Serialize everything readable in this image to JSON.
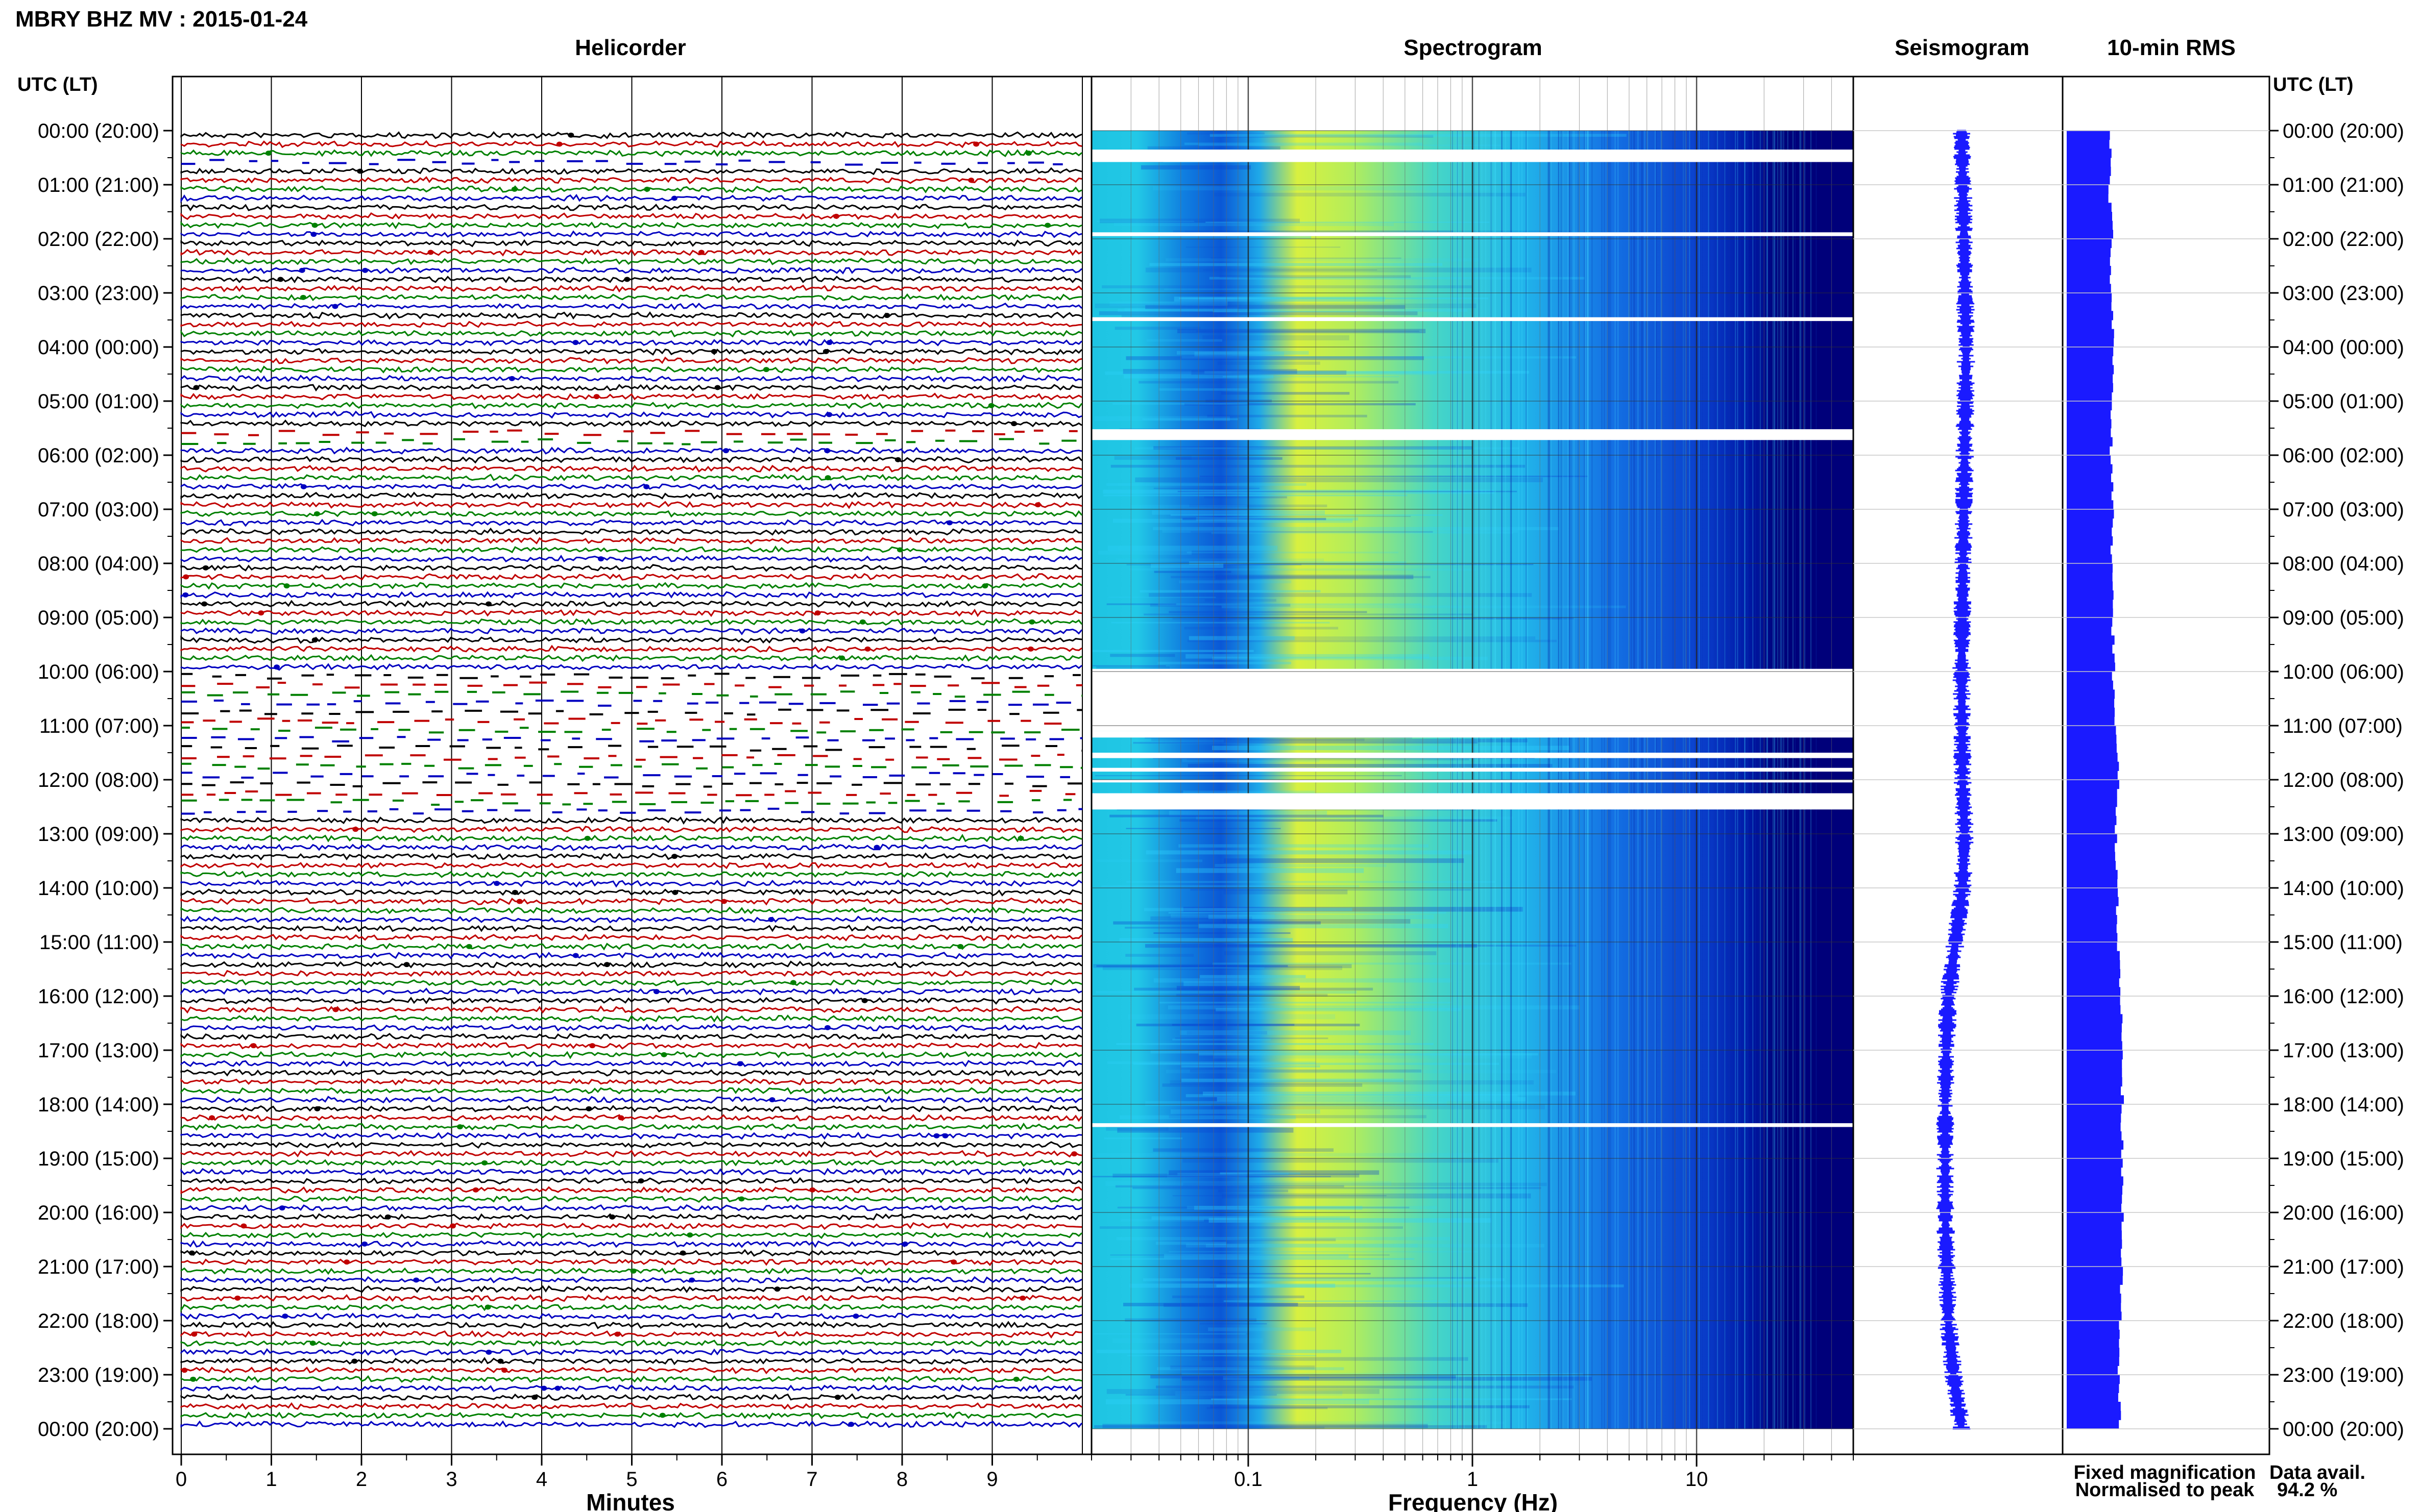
{
  "title": "MBRY BHZ MV : 2015-01-24",
  "panels": {
    "helicorder": "Helicorder",
    "spectrogram": "Spectrogram",
    "seismogram": "Seismogram",
    "rms": "10-min RMS"
  },
  "utc_lt_label": "UTC (LT)",
  "time_labels": [
    "00:00 (20:00)",
    "01:00 (21:00)",
    "02:00 (22:00)",
    "03:00 (23:00)",
    "04:00 (00:00)",
    "05:00 (01:00)",
    "06:00 (02:00)",
    "07:00 (03:00)",
    "08:00 (04:00)",
    "09:00 (05:00)",
    "10:00 (06:00)",
    "11:00 (07:00)",
    "12:00 (08:00)",
    "13:00 (09:00)",
    "14:00 (10:00)",
    "15:00 (11:00)",
    "16:00 (12:00)",
    "17:00 (13:00)",
    "18:00 (14:00)",
    "19:00 (15:00)",
    "20:00 (16:00)",
    "21:00 (17:00)",
    "22:00 (18:00)",
    "23:00 (19:00)",
    "00:00 (20:00)"
  ],
  "legend": {
    "fixed": "Fixed magnification",
    "fixed_color": "#1a1aff",
    "normalised": "Normalised to peak",
    "normalised_color": "#e00000"
  },
  "data_avail": {
    "label": "Data avail.",
    "value": "94.2 %"
  },
  "colors": {
    "trace_cycle": [
      "#000000",
      "#c00000",
      "#008000",
      "#0000c0"
    ],
    "spec_dark": "#00007a",
    "spec_mid": "#0050e0",
    "spec_cyan": "#22c8e6",
    "spec_yellow": "#d8f040",
    "seis_blue": "#1a1aff",
    "rms_blue": "#1a1aff"
  },
  "chart_data": {
    "type": "heatmap",
    "helicorder": {
      "xlabel": "Minutes",
      "xticks": [
        "0",
        "1",
        "2",
        "3",
        "4",
        "5",
        "6",
        "7",
        "8",
        "9"
      ],
      "xlim": [
        0,
        10
      ],
      "ylim_hours": [
        0,
        24
      ],
      "trace_interval_minutes": 10
    },
    "spectrogram": {
      "xlabel": "Frequency (Hz)",
      "xscale": "log",
      "xlim": [
        0.02,
        50
      ],
      "xticks": [
        "0.1",
        "1",
        "10"
      ],
      "gaps_hours": [
        [
          0.35,
          0.58
        ],
        [
          1.88,
          1.95
        ],
        [
          3.45,
          3.52
        ],
        [
          5.52,
          5.72
        ],
        [
          9.95,
          11.1
        ],
        [
          11.1,
          11.22
        ],
        [
          11.5,
          11.6
        ],
        [
          11.78,
          11.85
        ],
        [
          12.0,
          12.05
        ],
        [
          12.25,
          12.55
        ],
        [
          18.35,
          18.42
        ]
      ]
    },
    "seismogram": {
      "ylim_hours": [
        0,
        24
      ],
      "offset_profile": [
        [
          0,
          0
        ],
        [
          2,
          0.5
        ],
        [
          4,
          0.9
        ],
        [
          6,
          0.6
        ],
        [
          8,
          0.3
        ],
        [
          10,
          0
        ],
        [
          12,
          0.2
        ],
        [
          13,
          0.6
        ],
        [
          14,
          0.2
        ],
        [
          15,
          -1.2
        ],
        [
          16,
          -2.6
        ],
        [
          17,
          -3.0
        ],
        [
          18,
          -3.2
        ],
        [
          20,
          -3.2
        ],
        [
          22,
          -2.6
        ],
        [
          23,
          -1.6
        ],
        [
          24,
          0
        ]
      ]
    },
    "rms": {
      "interval_minutes": 10,
      "relative_level": [
        [
          0,
          0.74
        ],
        [
          0.5,
          0.78
        ],
        [
          1,
          0.74
        ],
        [
          2,
          0.8
        ],
        [
          3,
          0.76
        ],
        [
          4,
          0.82
        ],
        [
          5,
          0.8
        ],
        [
          6,
          0.78
        ],
        [
          7,
          0.82
        ],
        [
          8,
          0.78
        ],
        [
          9,
          0.8
        ],
        [
          10,
          0.82
        ],
        [
          11,
          0.84
        ],
        [
          12,
          0.9
        ],
        [
          13,
          0.86
        ],
        [
          14,
          0.88
        ],
        [
          15,
          0.9
        ],
        [
          16,
          0.94
        ],
        [
          17,
          0.96
        ],
        [
          18,
          0.98
        ],
        [
          19,
          0.96
        ],
        [
          20,
          0.98
        ],
        [
          21,
          0.96
        ],
        [
          22,
          0.94
        ],
        [
          23,
          0.92
        ],
        [
          24,
          0.94
        ]
      ]
    }
  }
}
